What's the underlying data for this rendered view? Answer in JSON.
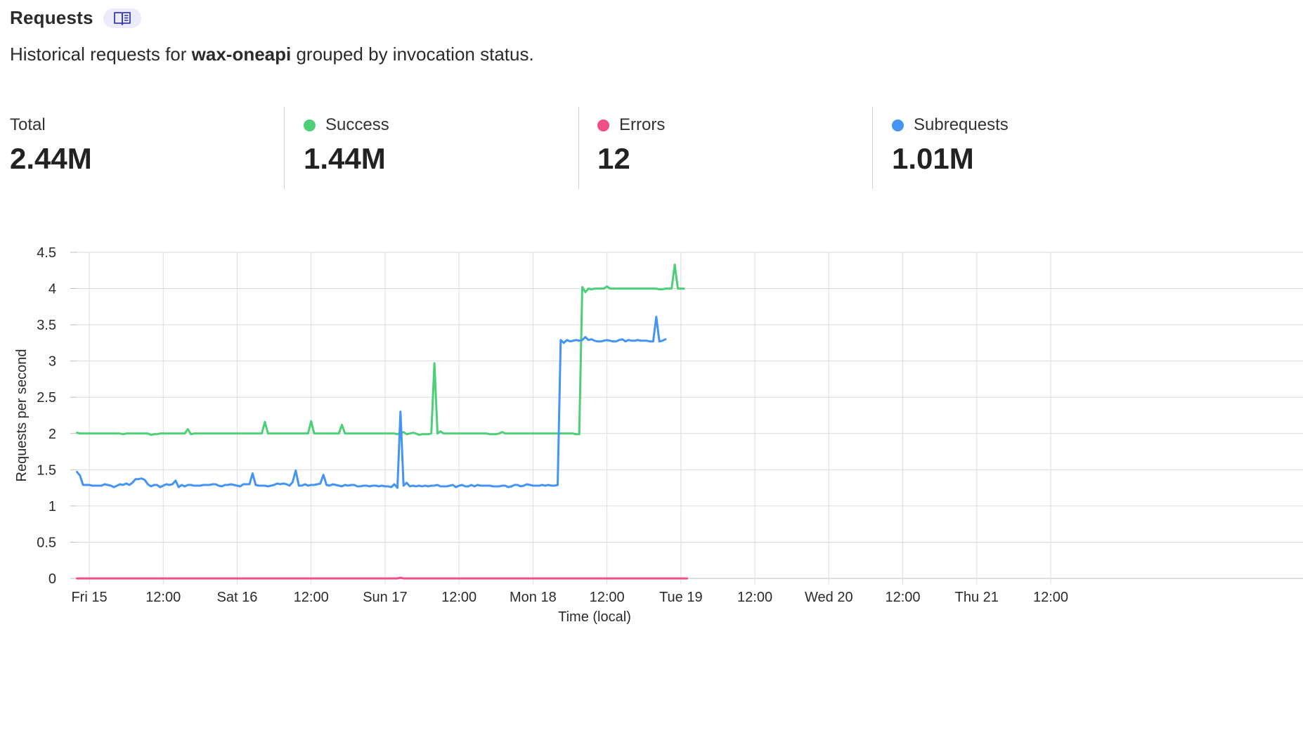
{
  "header": {
    "title": "Requests",
    "docs_icon": "book-icon"
  },
  "subtitle": {
    "prefix": "Historical requests for ",
    "worker": "wax-oneapi",
    "suffix": " grouped by invocation status."
  },
  "stats": [
    {
      "label": "Total",
      "value": "2.44M",
      "color": null
    },
    {
      "label": "Success",
      "value": "1.44M",
      "color": "#4ccf77"
    },
    {
      "label": "Errors",
      "value": "12",
      "color": "#ee4f87"
    },
    {
      "label": "Subrequests",
      "value": "1.01M",
      "color": "#4494f5"
    }
  ],
  "chart_data": {
    "type": "line",
    "xlabel": "Time (local)",
    "ylabel": "Requests per second",
    "ylim": [
      0,
      4.5
    ],
    "yticks": [
      "0",
      "0.5",
      "1",
      "1.5",
      "2",
      "2.5",
      "3",
      "3.5",
      "4",
      "4.5"
    ],
    "xticks": [
      "Fri 15",
      "12:00",
      "Sat 16",
      "12:00",
      "Sun 17",
      "12:00",
      "Mon 18",
      "12:00",
      "Tue 19",
      "12:00",
      "Wed 20",
      "12:00",
      "Thu 21",
      "12:00"
    ],
    "xtick_hours": [
      0,
      12,
      24,
      36,
      48,
      60,
      72,
      84,
      96,
      108,
      120,
      132,
      144,
      156
    ],
    "hours_per_point": 0.5,
    "start_hour": -2,
    "grid": true,
    "series": [
      {
        "name": "Success",
        "color": "#4ccf77",
        "values": [
          2.01,
          2.0,
          2.0,
          2.0,
          2.0,
          2.0,
          2.0,
          2.0,
          2.0,
          2.0,
          2.0,
          2.0,
          2.0,
          2.0,
          2.0,
          1.99,
          2.0,
          2.0,
          2.0,
          2.0,
          2.0,
          2.0,
          2.0,
          2.0,
          1.98,
          1.99,
          1.99,
          2.0,
          2.0,
          2.0,
          2.0,
          2.0,
          2.0,
          2.0,
          2.0,
          2.0,
          2.06,
          1.99,
          2.0,
          2.0,
          2.0,
          2.0,
          2.0,
          2.0,
          2.0,
          2.0,
          2.0,
          2.0,
          2.0,
          2.0,
          2.0,
          2.0,
          2.0,
          2.0,
          2.0,
          2.0,
          2.0,
          2.0,
          2.0,
          2.0,
          2.0,
          2.16,
          2.0,
          2.0,
          2.0,
          2.0,
          2.0,
          2.0,
          2.0,
          2.0,
          2.0,
          2.0,
          2.0,
          2.0,
          2.0,
          2.0,
          2.17,
          2.0,
          2.0,
          2.0,
          2.0,
          2.0,
          2.0,
          2.0,
          2.0,
          2.0,
          2.12,
          2.0,
          2.0,
          2.0,
          2.0,
          2.0,
          2.0,
          2.0,
          2.0,
          2.0,
          2.0,
          2.0,
          2.0,
          2.0,
          2.0,
          2.0,
          2.0,
          2.0,
          1.99,
          2.01,
          2.02,
          1.99,
          2.0,
          2.01,
          2.0,
          1.98,
          1.99,
          1.99,
          1.99,
          2.0,
          2.97,
          2.0,
          2.03,
          2.0,
          2.0,
          2.0,
          2.0,
          2.0,
          2.0,
          2.0,
          2.0,
          2.0,
          2.0,
          2.0,
          2.0,
          2.0,
          2.0,
          2.0,
          1.99,
          1.99,
          1.99,
          2.0,
          2.02,
          2.0,
          2.0,
          2.0,
          2.0,
          2.0,
          2.0,
          2.0,
          2.0,
          2.0,
          2.0,
          2.0,
          2.0,
          2.0,
          2.0,
          2.0,
          2.0,
          2.0,
          2.0,
          2.0,
          2.0,
          2.0,
          2.0,
          2.0,
          1.99,
          1.99,
          4.02,
          3.95,
          4.0,
          3.99,
          4.0,
          4.0,
          4.0,
          4.0,
          4.03,
          4.0,
          4.0,
          4.0,
          4.0,
          4.0,
          4.0,
          4.0,
          4.0,
          4.0,
          4.0,
          4.0,
          4.0,
          4.0,
          4.0,
          4.0,
          4.0,
          3.99,
          3.99,
          4.0,
          4.0,
          4.0,
          4.33,
          4.0,
          4.0,
          4.0
        ]
      },
      {
        "name": "Subrequests",
        "color": "#4494f5",
        "values": [
          1.47,
          1.42,
          1.29,
          1.29,
          1.29,
          1.28,
          1.28,
          1.28,
          1.28,
          1.3,
          1.29,
          1.28,
          1.26,
          1.28,
          1.3,
          1.29,
          1.31,
          1.29,
          1.32,
          1.37,
          1.37,
          1.38,
          1.36,
          1.3,
          1.27,
          1.29,
          1.29,
          1.26,
          1.28,
          1.3,
          1.29,
          1.3,
          1.35,
          1.26,
          1.29,
          1.27,
          1.29,
          1.29,
          1.28,
          1.28,
          1.28,
          1.29,
          1.29,
          1.29,
          1.3,
          1.3,
          1.28,
          1.27,
          1.29,
          1.29,
          1.3,
          1.29,
          1.28,
          1.27,
          1.3,
          1.3,
          1.3,
          1.45,
          1.29,
          1.28,
          1.28,
          1.28,
          1.27,
          1.28,
          1.29,
          1.31,
          1.3,
          1.31,
          1.3,
          1.28,
          1.33,
          1.49,
          1.28,
          1.28,
          1.3,
          1.28,
          1.29,
          1.29,
          1.3,
          1.31,
          1.43,
          1.29,
          1.28,
          1.3,
          1.29,
          1.28,
          1.27,
          1.29,
          1.28,
          1.29,
          1.29,
          1.27,
          1.27,
          1.28,
          1.28,
          1.27,
          1.28,
          1.28,
          1.27,
          1.28,
          1.27,
          1.27,
          1.26,
          1.3,
          1.25,
          2.3,
          1.28,
          1.32,
          1.27,
          1.28,
          1.27,
          1.28,
          1.27,
          1.28,
          1.27,
          1.28,
          1.28,
          1.29,
          1.27,
          1.27,
          1.27,
          1.28,
          1.29,
          1.26,
          1.28,
          1.29,
          1.27,
          1.27,
          1.29,
          1.27,
          1.29,
          1.28,
          1.28,
          1.28,
          1.28,
          1.27,
          1.27,
          1.27,
          1.28,
          1.28,
          1.26,
          1.27,
          1.29,
          1.29,
          1.27,
          1.28,
          1.3,
          1.29,
          1.28,
          1.28,
          1.28,
          1.29,
          1.28,
          1.29,
          1.28,
          1.28,
          1.29,
          3.29,
          3.25,
          3.29,
          3.27,
          3.28,
          3.29,
          3.28,
          3.29,
          3.33,
          3.29,
          3.3,
          3.28,
          3.27,
          3.27,
          3.28,
          3.29,
          3.28,
          3.27,
          3.27,
          3.29,
          3.3,
          3.27,
          3.29,
          3.28,
          3.28,
          3.29,
          3.28,
          3.28,
          3.28,
          3.27,
          3.27,
          3.61,
          3.27,
          3.28,
          3.3
        ]
      },
      {
        "name": "Errors",
        "color": "#ee4f87",
        "values": [
          0,
          0,
          0,
          0,
          0,
          0,
          0,
          0,
          0,
          0,
          0,
          0,
          0,
          0,
          0,
          0,
          0,
          0,
          0,
          0,
          0,
          0,
          0,
          0,
          0,
          0,
          0,
          0,
          0,
          0,
          0,
          0,
          0,
          0,
          0,
          0,
          0,
          0,
          0,
          0,
          0,
          0,
          0,
          0,
          0,
          0,
          0,
          0,
          0,
          0,
          0,
          0,
          0,
          0,
          0,
          0,
          0,
          0,
          0,
          0,
          0,
          0,
          0,
          0,
          0,
          0,
          0,
          0,
          0,
          0,
          0,
          0,
          0,
          0,
          0,
          0,
          0,
          0,
          0,
          0,
          0,
          0,
          0,
          0,
          0,
          0,
          0,
          0,
          0,
          0,
          0,
          0,
          0,
          0,
          0,
          0,
          0,
          0,
          0,
          0,
          0,
          0,
          0,
          0,
          0,
          0.01,
          0,
          0,
          0,
          0,
          0,
          0,
          0,
          0,
          0,
          0,
          0,
          0,
          0,
          0,
          0,
          0,
          0,
          0,
          0,
          0,
          0,
          0,
          0,
          0,
          0,
          0,
          0,
          0,
          0,
          0,
          0,
          0,
          0,
          0,
          0,
          0,
          0,
          0,
          0,
          0,
          0,
          0,
          0,
          0,
          0,
          0,
          0,
          0,
          0,
          0,
          0,
          0,
          0,
          0,
          0,
          0,
          0,
          0,
          0,
          0,
          0,
          0,
          0,
          0,
          0,
          0,
          0,
          0,
          0,
          0,
          0,
          0,
          0,
          0,
          0,
          0,
          0,
          0,
          0,
          0,
          0,
          0,
          0,
          0,
          0,
          0,
          0,
          0,
          0,
          0,
          0,
          0,
          0
        ]
      }
    ]
  }
}
